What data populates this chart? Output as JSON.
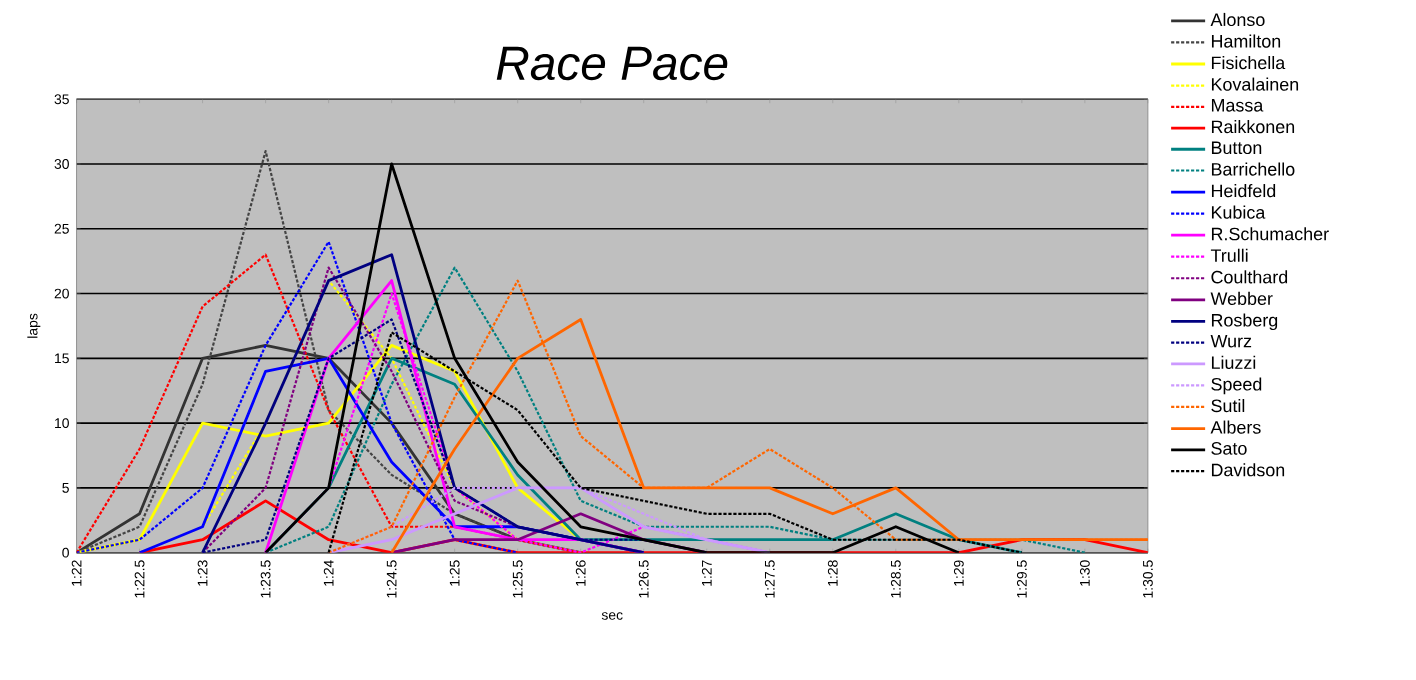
{
  "chart_data": {
    "type": "line",
    "title": "Race Pace",
    "xlabel": "sec",
    "ylabel": "laps",
    "categories": [
      "1:22",
      "1:22.5",
      "1:23",
      "1:23.5",
      "1:24",
      "1:24.5",
      "1:25",
      "1:25.5",
      "1:26",
      "1:26.5",
      "1:27",
      "1:27.5",
      "1:28",
      "1:28.5",
      "1:29",
      "1:29.5",
      "1:30",
      "1:30.5"
    ],
    "ylim": [
      0,
      35
    ],
    "yticks": [
      0,
      5,
      10,
      15,
      20,
      25,
      30,
      35
    ],
    "grid": "y",
    "legend": "right",
    "marker": "none",
    "series": [
      {
        "name": "Alonso",
        "color": "#333333",
        "line_style": "solid",
        "values": [
          0,
          3,
          15,
          16,
          15,
          10,
          3,
          1,
          0,
          null,
          null,
          null,
          null,
          null,
          null,
          null,
          null,
          null
        ]
      },
      {
        "name": "Hamilton",
        "color": "#444444",
        "line_style": "dotted",
        "values": [
          0,
          2,
          13,
          31,
          11,
          6,
          3,
          1,
          0,
          null,
          null,
          null,
          null,
          null,
          null,
          null,
          null,
          null
        ]
      },
      {
        "name": "Fisichella",
        "color": "#ffff00",
        "line_style": "solid",
        "values": [
          0,
          1,
          10,
          9,
          10,
          16,
          14,
          5,
          1,
          0,
          null,
          null,
          null,
          null,
          null,
          null,
          null,
          null
        ]
      },
      {
        "name": "Kovalainen",
        "color": "#ffff00",
        "line_style": "dotted",
        "values": [
          null,
          0,
          2,
          10,
          21,
          15,
          5,
          1,
          0,
          null,
          null,
          null,
          null,
          null,
          null,
          null,
          null,
          null
        ]
      },
      {
        "name": "Massa",
        "color": "#ff0000",
        "line_style": "dotted",
        "values": [
          0,
          8,
          19,
          23,
          11,
          2,
          2,
          1,
          0,
          null,
          null,
          null,
          null,
          null,
          null,
          null,
          null,
          null
        ]
      },
      {
        "name": "Raikkonen",
        "color": "#ff0000",
        "line_style": "solid",
        "values": [
          null,
          0,
          1,
          4,
          1,
          0,
          1,
          0,
          0,
          0,
          0,
          0,
          0,
          0,
          0,
          1,
          1,
          0
        ]
      },
      {
        "name": "Button",
        "color": "#008080",
        "line_style": "solid",
        "values": [
          null,
          null,
          null,
          0,
          5,
          15,
          13,
          6,
          1,
          1,
          1,
          1,
          1,
          3,
          1,
          0,
          null,
          null
        ]
      },
      {
        "name": "Barrichello",
        "color": "#008080",
        "line_style": "dotted",
        "values": [
          null,
          null,
          null,
          0,
          2,
          13,
          22,
          14,
          4,
          2,
          2,
          2,
          1,
          1,
          1,
          1,
          0,
          null
        ]
      },
      {
        "name": "Heidfeld",
        "color": "#0000ff",
        "line_style": "solid",
        "values": [
          null,
          0,
          2,
          14,
          15,
          7,
          2,
          2,
          1,
          0,
          null,
          null,
          null,
          null,
          null,
          null,
          null,
          null
        ]
      },
      {
        "name": "Kubica",
        "color": "#0000ff",
        "line_style": "dotted",
        "values": [
          0,
          1,
          5,
          16,
          24,
          10,
          1,
          0,
          null,
          null,
          null,
          null,
          null,
          null,
          null,
          null,
          null,
          null
        ]
      },
      {
        "name": "R.Schumacher",
        "color": "#ff00ff",
        "line_style": "solid",
        "values": [
          null,
          null,
          null,
          0,
          15,
          21,
          2,
          1,
          1,
          0,
          null,
          null,
          null,
          null,
          null,
          null,
          null,
          null
        ]
      },
      {
        "name": "Trulli",
        "color": "#ff00ff",
        "line_style": "dotted",
        "values": [
          null,
          null,
          null,
          0,
          5,
          20,
          5,
          1,
          0,
          2,
          1,
          0,
          null,
          null,
          null,
          null,
          null,
          null
        ]
      },
      {
        "name": "Coulthard",
        "color": "#800080",
        "line_style": "dotted",
        "values": [
          null,
          null,
          0,
          5,
          22,
          14,
          4,
          2,
          1,
          0,
          null,
          null,
          null,
          null,
          null,
          null,
          null,
          null
        ]
      },
      {
        "name": "Webber",
        "color": "#800080",
        "line_style": "solid",
        "values": [
          null,
          null,
          null,
          null,
          null,
          0,
          1,
          1,
          3,
          1,
          0,
          null,
          null,
          null,
          null,
          null,
          null,
          null
        ]
      },
      {
        "name": "Rosberg",
        "color": "#000080",
        "line_style": "solid",
        "values": [
          null,
          null,
          0,
          10,
          21,
          23,
          5,
          2,
          1,
          0,
          null,
          null,
          null,
          null,
          null,
          null,
          null,
          null
        ]
      },
      {
        "name": "Wurz",
        "color": "#000080",
        "line_style": "dotted",
        "values": [
          null,
          null,
          0,
          1,
          15,
          18,
          5,
          2,
          1,
          1,
          0,
          null,
          null,
          null,
          null,
          null,
          null,
          null
        ]
      },
      {
        "name": "Liuzzi",
        "color": "#cc99ff",
        "line_style": "solid",
        "values": [
          null,
          null,
          null,
          null,
          0,
          1,
          3,
          5,
          5,
          2,
          1,
          0,
          null,
          null,
          null,
          null,
          null,
          null
        ]
      },
      {
        "name": "Speed",
        "color": "#cc99ff",
        "line_style": "dotted",
        "values": [
          null,
          null,
          null,
          null,
          0,
          2,
          5,
          5,
          5,
          3,
          1,
          0,
          null,
          null,
          null,
          null,
          null,
          null
        ]
      },
      {
        "name": "Sutil",
        "color": "#ff6600",
        "line_style": "dotted",
        "values": [
          null,
          null,
          null,
          null,
          0,
          2,
          12,
          21,
          9,
          5,
          5,
          8,
          5,
          1,
          1,
          1,
          1,
          1
        ]
      },
      {
        "name": "Albers",
        "color": "#ff6600",
        "line_style": "solid",
        "values": [
          null,
          null,
          null,
          null,
          null,
          0,
          8,
          15,
          18,
          5,
          5,
          5,
          3,
          5,
          1,
          1,
          1,
          1
        ]
      },
      {
        "name": "Sato",
        "color": "#000000",
        "line_style": "solid",
        "values": [
          null,
          null,
          null,
          0,
          5,
          30,
          15,
          7,
          2,
          1,
          0,
          0,
          0,
          2,
          0,
          null,
          null,
          null
        ]
      },
      {
        "name": "Davidson",
        "color": "#000000",
        "line_style": "dotted",
        "values": [
          null,
          null,
          null,
          null,
          0,
          17,
          14,
          11,
          5,
          4,
          3,
          3,
          1,
          1,
          1,
          0,
          null,
          null
        ]
      }
    ]
  }
}
